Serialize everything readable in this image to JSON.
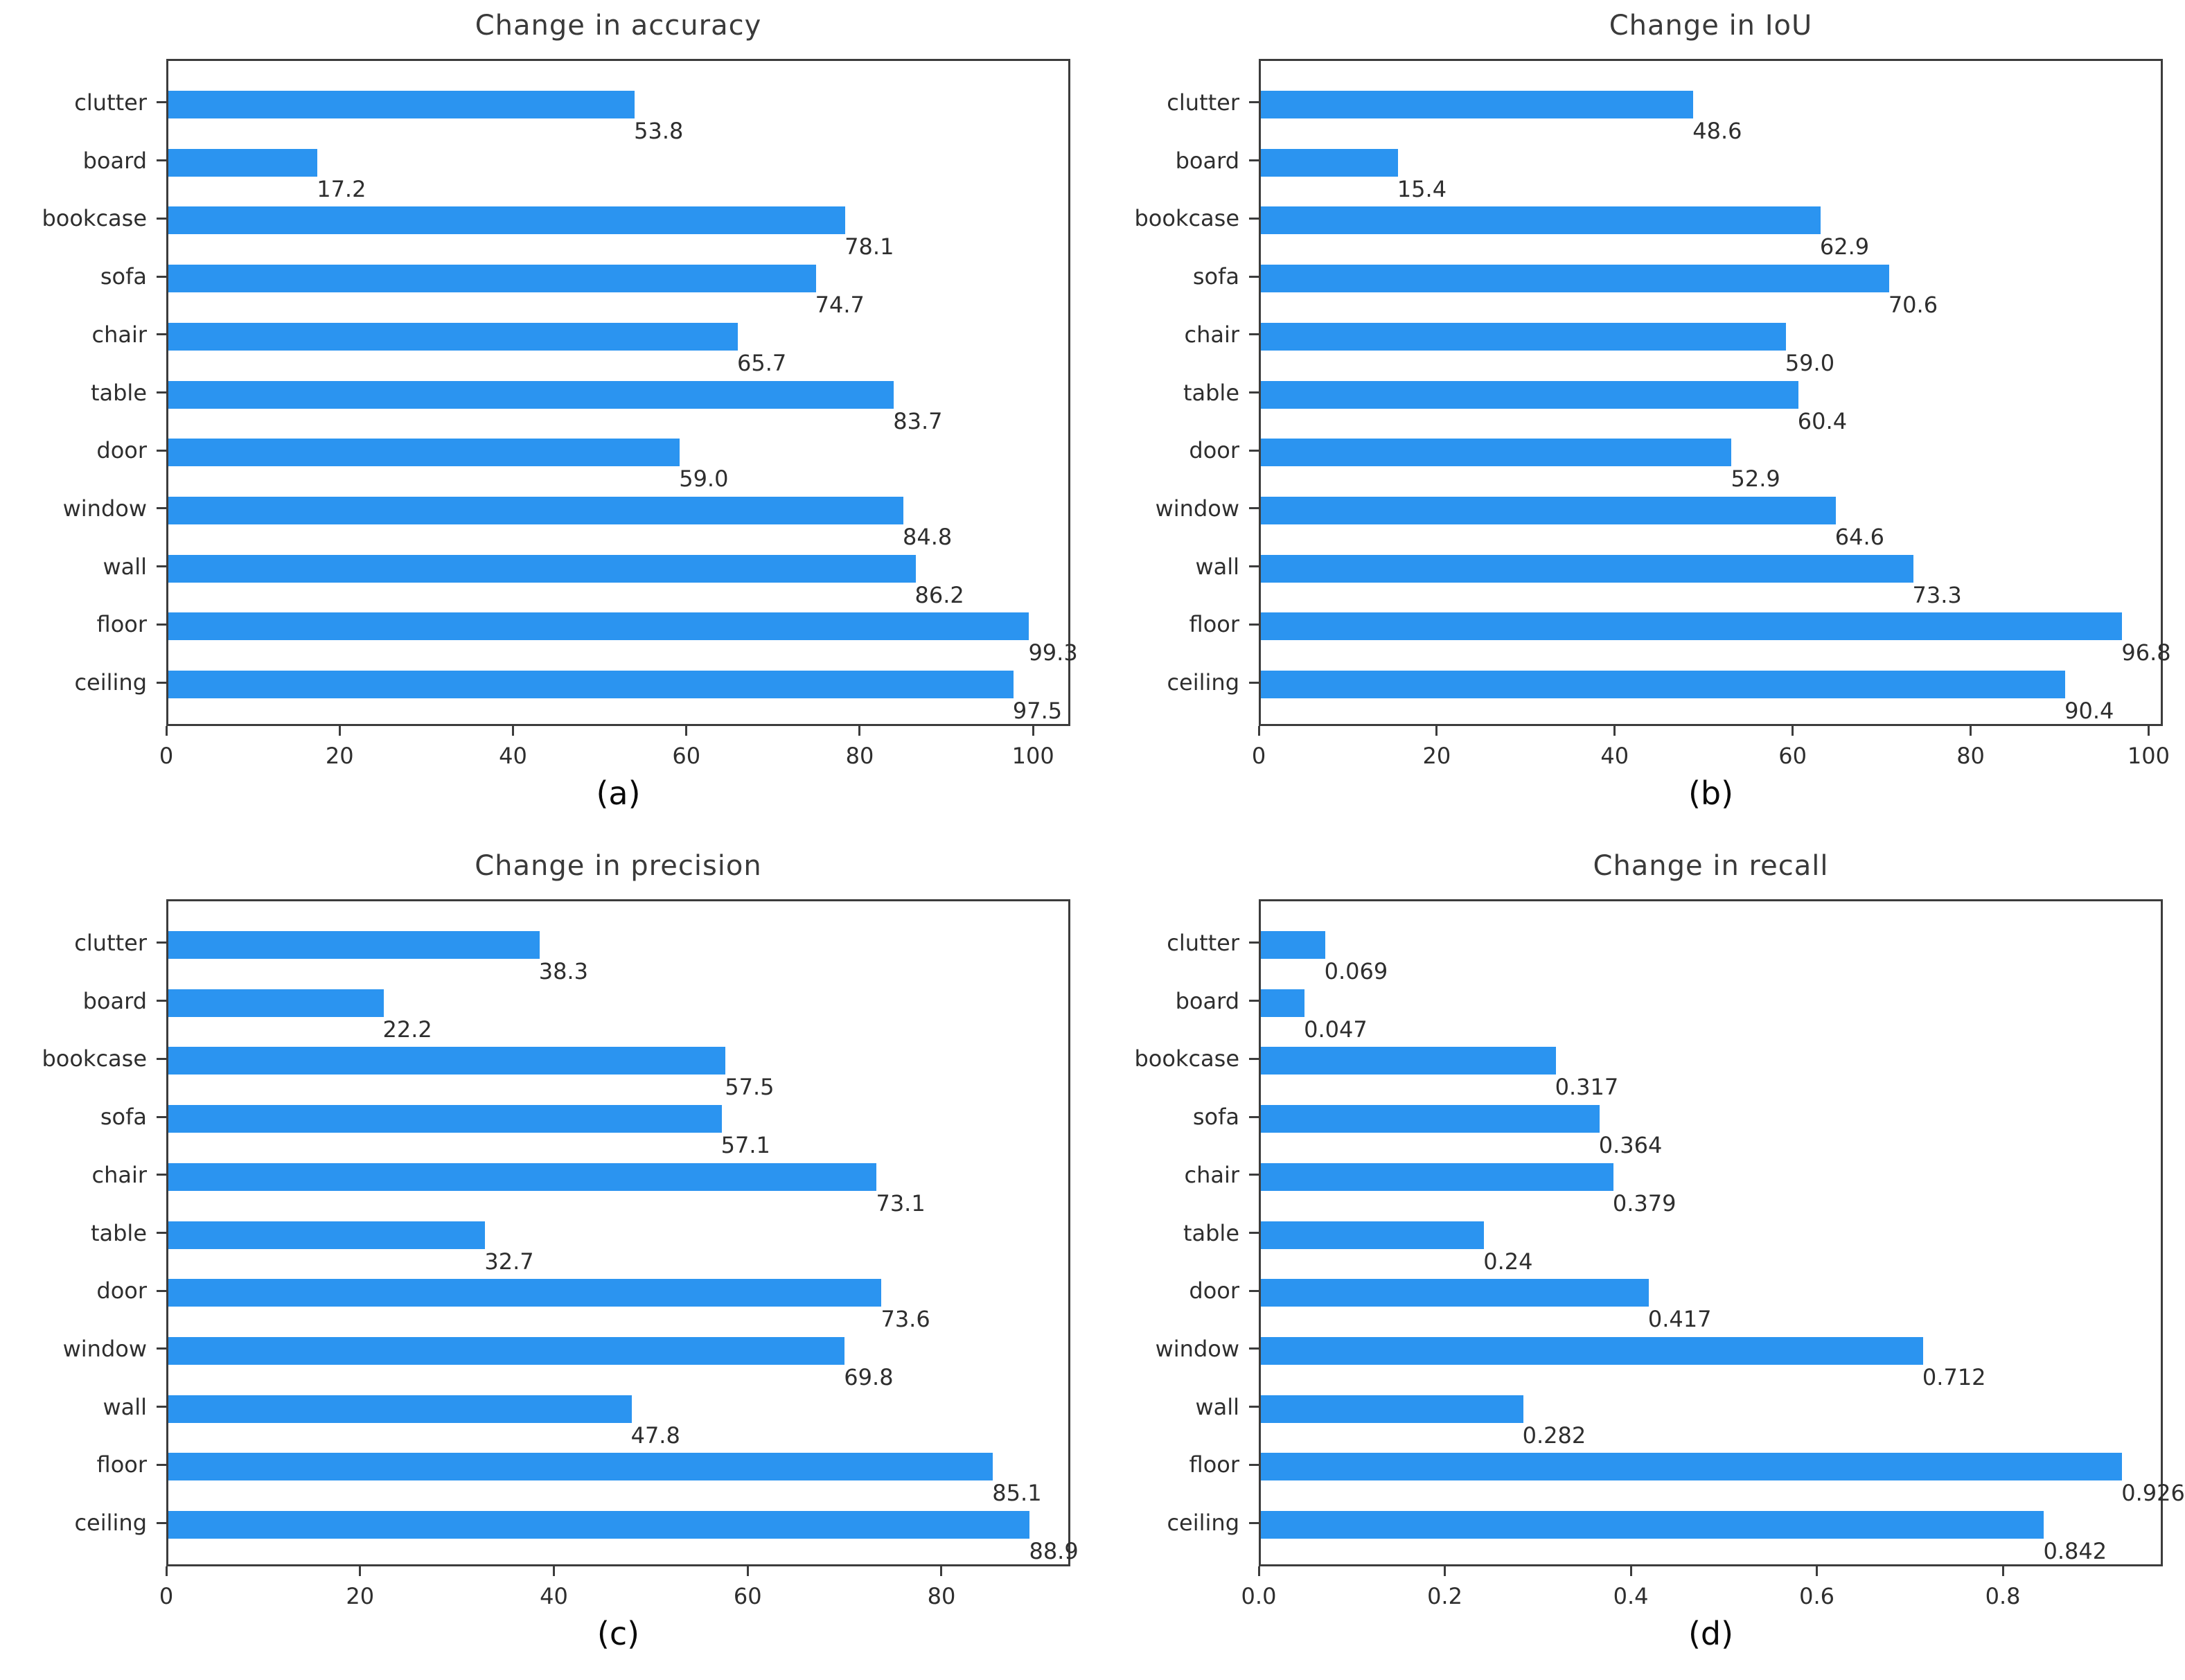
{
  "figure": {
    "bar_color": "#2b94f0",
    "spine_color": "#3c3c3c",
    "text_color": "#2e2e2e"
  },
  "chart_data": [
    {
      "type": "bar",
      "orientation": "horizontal",
      "title": "Change in accuracy",
      "caption": "(a)",
      "categories": [
        "clutter",
        "board",
        "bookcase",
        "sofa",
        "chair",
        "table",
        "door",
        "window",
        "wall",
        "floor",
        "ceiling"
      ],
      "values": [
        53.8,
        17.2,
        78.1,
        74.7,
        65.7,
        83.7,
        59.0,
        84.8,
        86.2,
        99.3,
        97.5
      ],
      "value_labels": [
        "53.8",
        "17.2",
        "78.1",
        "74.7",
        "65.7",
        "83.7",
        "59.0",
        "84.8",
        "86.2",
        "99.3",
        "97.5"
      ],
      "xlim": [
        0,
        104.3
      ],
      "xtick_values": [
        0,
        20,
        40,
        60,
        80,
        100
      ],
      "xtick_labels": [
        "0",
        "20",
        "40",
        "60",
        "80",
        "100"
      ],
      "grid": false,
      "legend": null
    },
    {
      "type": "bar",
      "orientation": "horizontal",
      "title": "Change in IoU",
      "caption": "(b)",
      "categories": [
        "clutter",
        "board",
        "bookcase",
        "sofa",
        "chair",
        "table",
        "door",
        "window",
        "wall",
        "floor",
        "ceiling"
      ],
      "values": [
        48.6,
        15.4,
        62.9,
        70.6,
        59.0,
        60.4,
        52.9,
        64.6,
        73.3,
        96.8,
        90.4
      ],
      "value_labels": [
        "48.6",
        "15.4",
        "62.9",
        "70.6",
        "59.0",
        "60.4",
        "52.9",
        "64.6",
        "73.3",
        "96.8",
        "90.4"
      ],
      "xlim": [
        0,
        101.6
      ],
      "xtick_values": [
        0,
        20,
        40,
        60,
        80,
        100
      ],
      "xtick_labels": [
        "0",
        "20",
        "40",
        "60",
        "80",
        "100"
      ],
      "grid": false,
      "legend": null
    },
    {
      "type": "bar",
      "orientation": "horizontal",
      "title": "Change in precision",
      "caption": "(c)",
      "categories": [
        "clutter",
        "board",
        "bookcase",
        "sofa",
        "chair",
        "table",
        "door",
        "window",
        "wall",
        "floor",
        "ceiling"
      ],
      "values": [
        38.3,
        22.2,
        57.5,
        57.1,
        73.1,
        32.7,
        73.6,
        69.8,
        47.8,
        85.1,
        88.9
      ],
      "value_labels": [
        "38.3",
        "22.2",
        "57.5",
        "57.1",
        "73.1",
        "32.7",
        "73.6",
        "69.8",
        "47.8",
        "85.1",
        "88.9"
      ],
      "xlim": [
        0,
        93.3
      ],
      "xtick_values": [
        0,
        20,
        40,
        60,
        80
      ],
      "xtick_labels": [
        "0",
        "20",
        "40",
        "60",
        "80"
      ],
      "grid": false,
      "legend": null
    },
    {
      "type": "bar",
      "orientation": "horizontal",
      "title": "Change in recall",
      "caption": "(d)",
      "categories": [
        "clutter",
        "board",
        "bookcase",
        "sofa",
        "chair",
        "table",
        "door",
        "window",
        "wall",
        "floor",
        "ceiling"
      ],
      "values": [
        0.069,
        0.047,
        0.317,
        0.364,
        0.379,
        0.24,
        0.417,
        0.712,
        0.282,
        0.926,
        0.842
      ],
      "value_labels": [
        "0.069",
        "0.047",
        "0.317",
        "0.364",
        "0.379",
        "0.24",
        "0.417",
        "0.712",
        "0.282",
        "0.926",
        "0.842"
      ],
      "xlim": [
        0,
        0.972
      ],
      "xtick_values": [
        0,
        0.2,
        0.4,
        0.6,
        0.8
      ],
      "xtick_labels": [
        "0.0",
        "0.2",
        "0.4",
        "0.6",
        "0.8"
      ],
      "grid": false,
      "legend": null
    }
  ]
}
